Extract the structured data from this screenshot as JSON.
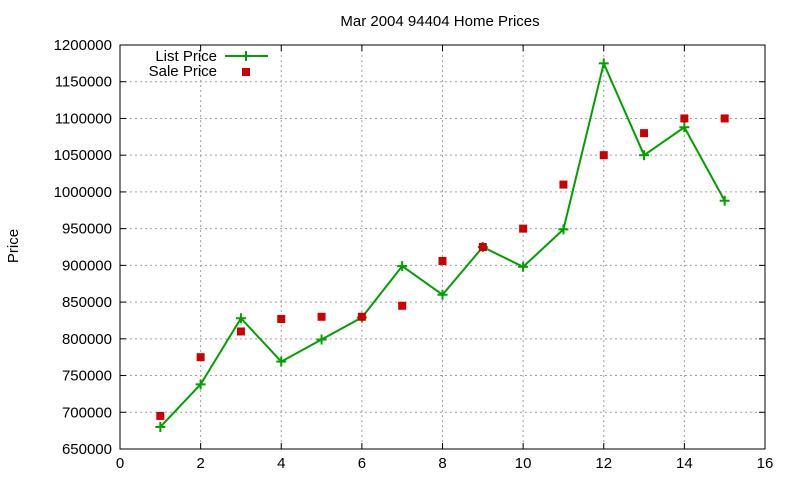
{
  "chart_data": {
    "type": "line",
    "title": "Mar 2004 94404 Home Prices",
    "xlabel": "",
    "ylabel": "Price",
    "xlim": [
      0,
      16
    ],
    "ylim": [
      650000,
      1200000
    ],
    "x_ticks": [
      0,
      2,
      4,
      6,
      8,
      10,
      12,
      14,
      16
    ],
    "y_ticks": [
      650000,
      700000,
      750000,
      800000,
      850000,
      900000,
      950000,
      1000000,
      1050000,
      1100000,
      1150000,
      1200000
    ],
    "grid": true,
    "legend_position": "top-left",
    "series": [
      {
        "name": "List Price",
        "style": "line-with-plus-markers",
        "color": "#00a000",
        "x": [
          1,
          2,
          3,
          4,
          5,
          6,
          7,
          8,
          9,
          10,
          11,
          12,
          13,
          14,
          15
        ],
        "values": [
          680000,
          738000,
          828000,
          769000,
          799000,
          829000,
          899000,
          860000,
          925000,
          898000,
          949000,
          1175000,
          1050000,
          1088000,
          988000
        ]
      },
      {
        "name": "Sale Price",
        "style": "square-markers",
        "color": "#cc0000",
        "x": [
          1,
          2,
          3,
          4,
          5,
          6,
          7,
          8,
          9,
          10,
          11,
          12,
          13,
          14,
          15
        ],
        "values": [
          695000,
          775000,
          810000,
          827000,
          830000,
          830000,
          845000,
          906000,
          925000,
          950000,
          1010000,
          1050000,
          1080000,
          1100000,
          1100000
        ]
      }
    ]
  }
}
